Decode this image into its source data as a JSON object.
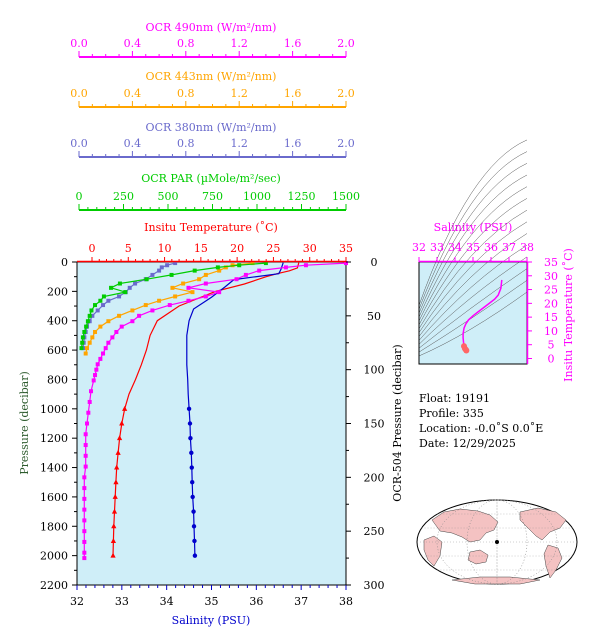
{
  "colors": {
    "ocr490": "#ff00ff",
    "ocr443": "#ffa500",
    "ocr380": "#6a6acc",
    "par": "#00cc00",
    "temperature": "#ff0000",
    "salinity": "#0000cc",
    "pressure_axis": "#2e5c2e",
    "plot_bg": "#cfeef8",
    "ts_curve": "#ff00ff",
    "ts_start": "#ff6666"
  },
  "top_axes": [
    {
      "key": "ocr490",
      "label": "OCR 490nm (W/m²/nm)",
      "ticks": [
        "0.0",
        "0.4",
        "0.8",
        "1.2",
        "1.6",
        "2.0"
      ]
    },
    {
      "key": "ocr443",
      "label": "OCR 443nm (W/m²/nm)",
      "ticks": [
        "0.0",
        "0.4",
        "0.8",
        "1.2",
        "1.6",
        "2.0"
      ]
    },
    {
      "key": "ocr380",
      "label": "OCR 380nm (W/m²/nm)",
      "ticks": [
        "0.0",
        "0.4",
        "0.8",
        "1.2",
        "1.6",
        "2.0"
      ]
    },
    {
      "key": "par",
      "label": "OCR PAR (µMole/m²/sec)",
      "ticks": [
        "0",
        "250",
        "500",
        "750",
        "1000",
        "1250",
        "1500"
      ]
    }
  ],
  "chart_data": [
    {
      "type": "line",
      "temperature_axis": {
        "label": "Insitu Temperature (˚C)",
        "ticks": [
          "0",
          "5",
          "10",
          "15",
          "20",
          "25",
          "30",
          "35"
        ],
        "range": [
          -2,
          35
        ]
      },
      "salinity_axis": {
        "label": "Salinity (PSU)",
        "ticks": [
          "32",
          "33",
          "34",
          "35",
          "36",
          "37",
          "38"
        ],
        "range": [
          32,
          38
        ]
      },
      "pressure_axis": {
        "label": "Pressure (decibar)",
        "ticks": [
          "0",
          "200",
          "400",
          "600",
          "800",
          "1000",
          "1200",
          "1400",
          "1600",
          "1800",
          "2000",
          "2200"
        ],
        "range": [
          0,
          2200
        ]
      },
      "ocr_pressure_axis": {
        "label": "OCR-504 Pressure (decibar)",
        "ticks": [
          "0",
          "50",
          "100",
          "150",
          "200",
          "250",
          "300"
        ],
        "range": [
          0,
          300
        ]
      },
      "series": [
        {
          "key": "temperature",
          "pressure": [
            5,
            40,
            60,
            80,
            100,
            150,
            200,
            300,
            400,
            500,
            600,
            700,
            800,
            900,
            1000,
            1100,
            1200,
            1300,
            1400,
            1500,
            1600,
            1700,
            1800,
            1900,
            2000
          ],
          "values": [
            28.5,
            28.3,
            27.2,
            25.5,
            24,
            21,
            17,
            12,
            9,
            8,
            7.5,
            6.8,
            6,
            5.1,
            4.5,
            4.1,
            3.8,
            3.6,
            3.4,
            3.3,
            3.2,
            3.1,
            3.0,
            2.95,
            2.9
          ]
        },
        {
          "key": "salinity",
          "pressure": [
            5,
            50,
            80,
            120,
            170,
            240,
            320,
            400,
            500,
            600,
            700,
            800,
            900,
            1000,
            1100,
            1200,
            1300,
            1400,
            1500,
            1600,
            1700,
            1800,
            1900,
            2000
          ],
          "values": [
            36.6,
            36.55,
            36.5,
            35.5,
            35.3,
            35.0,
            34.6,
            34.5,
            34.45,
            34.45,
            34.45,
            34.47,
            34.48,
            34.5,
            34.52,
            34.53,
            34.55,
            34.56,
            34.57,
            34.58,
            34.6,
            34.61,
            34.62,
            34.63
          ]
        },
        {
          "key": "ocr490",
          "ocr_pressure": [
            1,
            3,
            5,
            8,
            12,
            16,
            20,
            24,
            28,
            32,
            36,
            40,
            45,
            50,
            55,
            60,
            65,
            70,
            75,
            80,
            85,
            90,
            95,
            100,
            105,
            110,
            120,
            130,
            140,
            150,
            160,
            170,
            180,
            190,
            200,
            210,
            220,
            230,
            240,
            250,
            260,
            270,
            275
          ],
          "values": [
            2.0,
            1.7,
            1.55,
            1.35,
            1.25,
            1.18,
            0.95,
            0.82,
            1.05,
            0.95,
            0.82,
            0.68,
            0.55,
            0.45,
            0.4,
            0.32,
            0.28,
            0.25,
            0.22,
            0.2,
            0.18,
            0.16,
            0.14,
            0.13,
            0.12,
            0.11,
            0.09,
            0.08,
            0.07,
            0.06,
            0.05,
            0.05,
            0.05,
            0.05,
            0.04,
            0.04,
            0.04,
            0.04,
            0.04,
            0.04,
            0.04,
            0.04,
            0.04
          ]
        },
        {
          "key": "ocr443",
          "ocr_pressure": [
            1,
            3,
            5,
            8,
            12,
            16,
            20,
            24,
            28,
            32,
            36,
            40,
            45,
            50,
            55,
            60,
            65,
            70,
            75,
            80,
            85
          ],
          "values": [
            1.3,
            1.15,
            1.1,
            1.05,
            0.95,
            0.9,
            0.78,
            0.7,
            0.85,
            0.72,
            0.6,
            0.5,
            0.4,
            0.3,
            0.22,
            0.16,
            0.12,
            0.1,
            0.08,
            0.06,
            0.05
          ]
        },
        {
          "key": "ocr380",
          "ocr_pressure": [
            1,
            3,
            5,
            8,
            12,
            16,
            20,
            24,
            28,
            32,
            36,
            40,
            45,
            50,
            55,
            60,
            65,
            70,
            75,
            80
          ],
          "values": [
            0.72,
            0.66,
            0.62,
            0.6,
            0.55,
            0.5,
            0.42,
            0.38,
            0.35,
            0.3,
            0.22,
            0.18,
            0.14,
            0.1,
            0.08,
            0.06,
            0.05,
            0.04,
            0.035,
            0.03
          ]
        },
        {
          "key": "par",
          "ocr_pressure": [
            1,
            3,
            5,
            8,
            12,
            16,
            20,
            24,
            28,
            32,
            36,
            40,
            45,
            50,
            55,
            60,
            65,
            70,
            75,
            80
          ],
          "values": [
            1050,
            900,
            780,
            650,
            520,
            380,
            230,
            180,
            260,
            140,
            120,
            90,
            70,
            60,
            50,
            40,
            30,
            22,
            18,
            14
          ]
        }
      ]
    },
    {
      "type": "scatter",
      "salinity_axis": {
        "label": "Salinity (PSU)",
        "ticks": [
          "32",
          "33",
          "34",
          "35",
          "36",
          "37",
          "38"
        ],
        "range": [
          32,
          38
        ]
      },
      "temperature_axis": {
        "label": "Insitu Temperature (˚C)",
        "ticks": [
          "0",
          "5",
          "10",
          "15",
          "20",
          "25",
          "30",
          "35"
        ],
        "range": [
          -2,
          35
        ]
      },
      "ts_curve": {
        "salinity": [
          34.63,
          34.6,
          34.55,
          34.5,
          34.47,
          34.45,
          34.45,
          34.5,
          34.6,
          34.75,
          35.0,
          35.3,
          35.6,
          35.9,
          36.2,
          36.4,
          36.55,
          36.6
        ],
        "temperature": [
          2.9,
          3.2,
          3.6,
          4.5,
          6,
          7.5,
          9,
          11,
          12.5,
          14,
          15.5,
          17,
          18.5,
          20,
          21.5,
          23,
          25.5,
          28.5
        ]
      }
    }
  ],
  "info": {
    "float": "Float:  19191",
    "profile": "Profile:  335",
    "location": "Location:  -0.0˚S   0.0˚E",
    "date": "Date:  12/29/2025"
  }
}
